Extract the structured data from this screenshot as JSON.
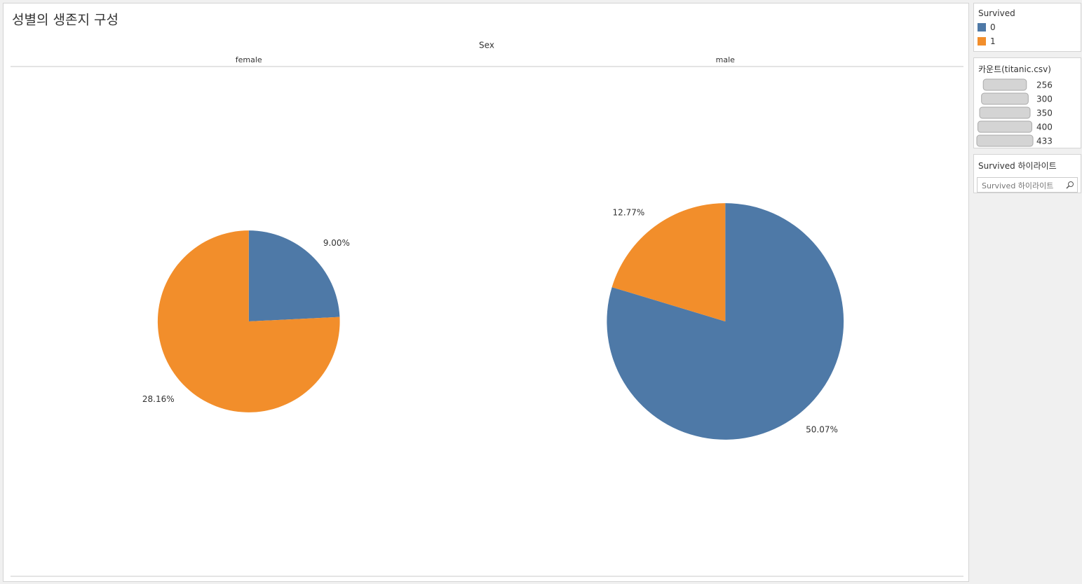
{
  "title": "성별의 생존지 구성",
  "column_header": "Sex",
  "chart_data": [
    {
      "type": "pie",
      "title": "female",
      "categories": [
        "0",
        "1"
      ],
      "values": [
        9.0,
        28.16
      ],
      "value_labels": [
        "9.00%",
        "28.16%"
      ],
      "colors": [
        "#4e79a7",
        "#f28e2b"
      ]
    },
    {
      "type": "pie",
      "title": "male",
      "categories": [
        "0",
        "1"
      ],
      "values": [
        50.07,
        12.77
      ],
      "value_labels": [
        "50.07%",
        "12.77%"
      ],
      "colors": [
        "#4e79a7",
        "#f28e2b"
      ]
    }
  ],
  "legend": {
    "title": "Survived"
  },
  "size_legend": {
    "title": "카운트(titanic.csv)",
    "values": [
      256,
      300,
      350,
      400,
      433
    ]
  },
  "highlighter": {
    "title": "Survived 하이라이트",
    "placeholder": "Survived 하이라이트"
  }
}
